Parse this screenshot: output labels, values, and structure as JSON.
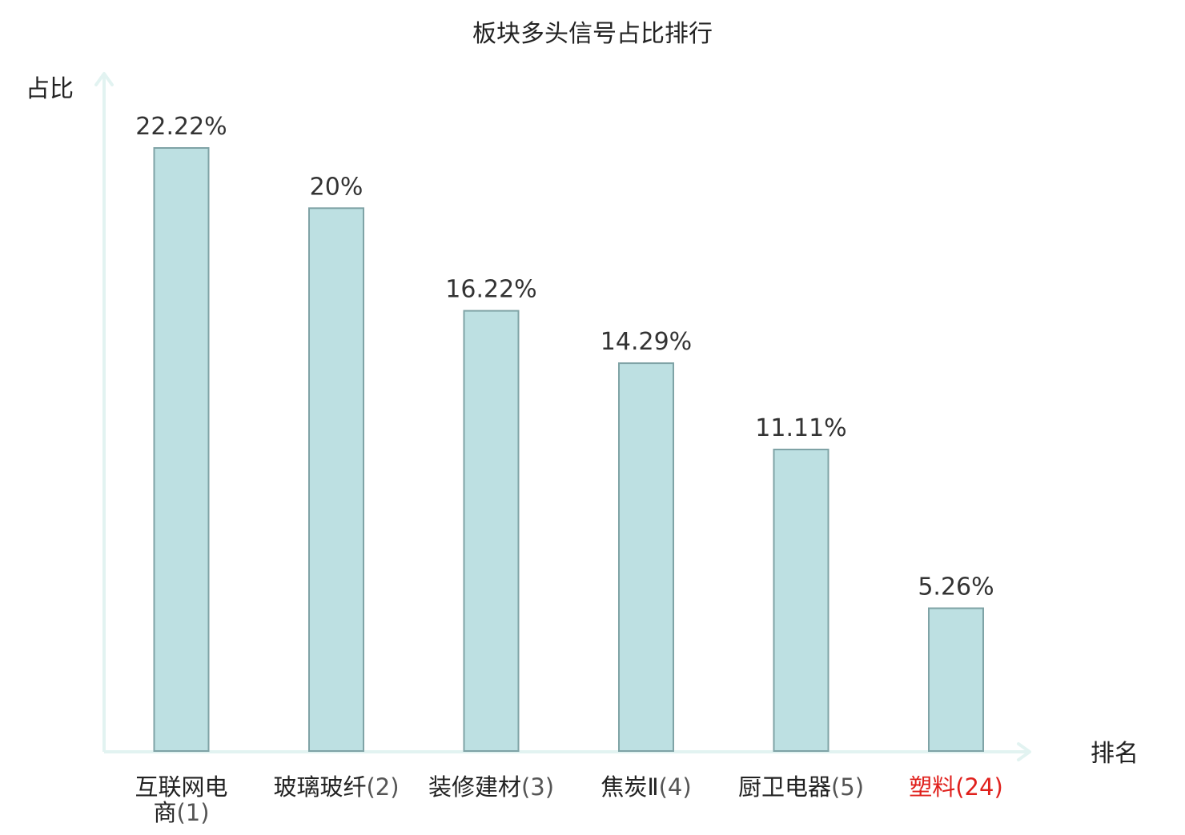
{
  "chart_data": {
    "type": "bar",
    "title": "板块多头信号占比排行",
    "xlabel": "排名",
    "ylabel": "占比",
    "ylim": [
      0,
      25
    ],
    "grid": false,
    "legend": "none",
    "categories": [
      {
        "name": "互联网电商",
        "rank": "(1)",
        "highlight": false,
        "value_label": "22.22%"
      },
      {
        "name": "玻璃玻纤",
        "rank": "(2)",
        "highlight": false,
        "value_label": "20%"
      },
      {
        "name": "装修建材",
        "rank": "(3)",
        "highlight": false,
        "value_label": "16.22%"
      },
      {
        "name": "焦炭Ⅱ",
        "rank": "(4)",
        "highlight": false,
        "value_label": "14.29%"
      },
      {
        "name": "厨卫电器",
        "rank": "(5)",
        "highlight": false,
        "value_label": "11.11%"
      },
      {
        "name": "塑料",
        "rank": "(24)",
        "highlight": true,
        "value_label": "5.26%"
      }
    ],
    "values": [
      22.22,
      20,
      16.22,
      14.29,
      11.11,
      5.26
    ],
    "colors": {
      "bar_fill": "#bde0e2",
      "bar_stroke": "#7fa3a6",
      "axis": "#e2f3f1",
      "value_label": "#333333",
      "category_label": "#222222",
      "rank_label": "#555555",
      "highlight": "#e0201c"
    }
  }
}
